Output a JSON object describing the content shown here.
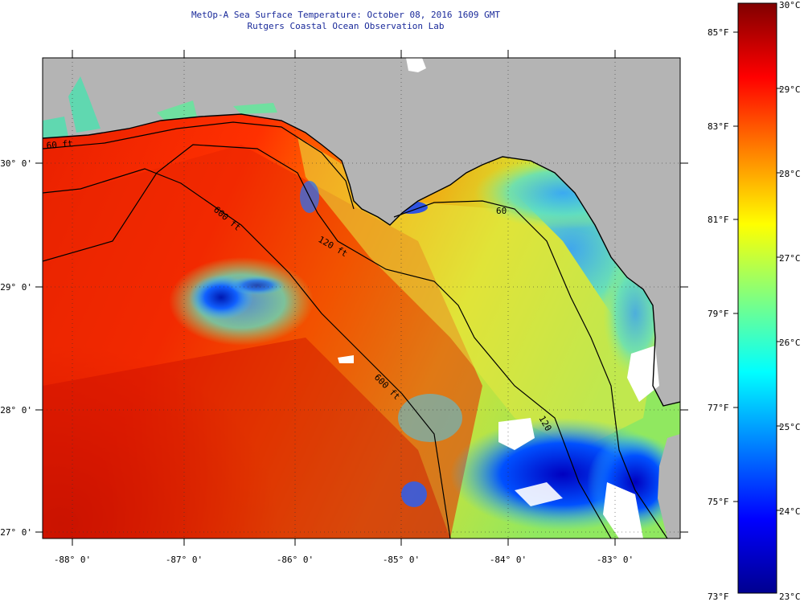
{
  "title": {
    "line1": "MetOp-A Sea Surface Temperature:  October 08, 2016 1609 GMT",
    "line2": "Rutgers Coastal Ocean Observation Lab"
  },
  "map": {
    "lon_ticks": [
      "-88° 0'",
      "-87° 0'",
      "-86° 0'",
      "-85° 0'",
      "-84° 0'",
      "-83° 0'"
    ],
    "lat_ticks": [
      "30° 0'",
      "29° 0'",
      "28° 0'",
      "27° 0'"
    ],
    "isobaths": [
      "60 ft",
      "120 ft",
      "600 ft",
      "600 ft",
      "60",
      "120"
    ],
    "colors": {
      "land": "#b4b4b4",
      "cloud": "#ffffff",
      "coast": "#000000"
    }
  },
  "colorbar": {
    "celsius": [
      "30°C",
      "29°C",
      "28°C",
      "27°C",
      "26°C",
      "25°C",
      "24°C",
      "23°C"
    ],
    "fahrenheit": [
      "85°F",
      "83°F",
      "81°F",
      "79°F",
      "77°F",
      "75°F",
      "73°F"
    ],
    "colors": [
      "#00008f",
      "#0000ff",
      "#0080ff",
      "#00ffff",
      "#80ff80",
      "#ffff00",
      "#ff8000",
      "#ff0000",
      "#800000"
    ]
  }
}
